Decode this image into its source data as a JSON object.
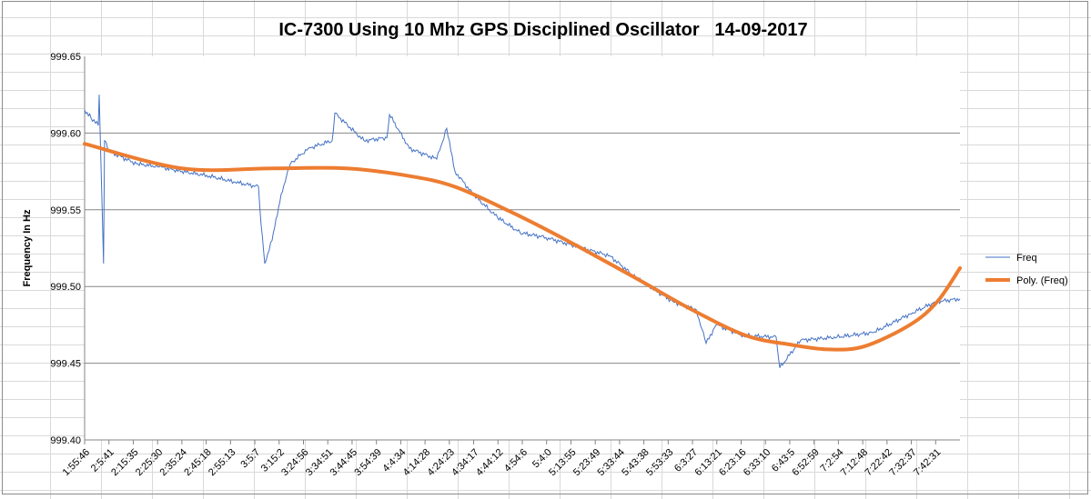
{
  "chart_data": {
    "type": "line",
    "title": "IC-7300 Using 10 Mhz GPS Disciplined Oscillator   14-09-2017",
    "xlabel": "",
    "ylabel": "Frequency In Hz",
    "ylim": [
      999.4,
      999.65
    ],
    "yticks": [
      "999.65",
      "999.60",
      "999.55",
      "999.50",
      "999.45",
      "999.40"
    ],
    "ytick_values": [
      999.65,
      999.6,
      999.55,
      999.5,
      999.45,
      999.4
    ],
    "grid": true,
    "legend_position": "right",
    "categories": [
      "1:55:46",
      "2:5:41",
      "2:15:35",
      "2:25:30",
      "2:35:24",
      "2:45:18",
      "2:55:13",
      "3:5:7",
      "3:15:2",
      "3:24:56",
      "3:34:51",
      "3:44:45",
      "3:54:39",
      "4:4:34",
      "4:14:28",
      "4:24:23",
      "4:34:17",
      "4:44:12",
      "4:54:6",
      "5:4:0",
      "5:13:55",
      "5:23:49",
      "5:33:44",
      "5:43:38",
      "5:53:33",
      "6:3:27",
      "6:13:21",
      "6:23:16",
      "6:33:10",
      "6:43:5",
      "6:52:59",
      "7:2:54",
      "7:12:48",
      "7:22:42",
      "7:32:37",
      "7:42:31"
    ],
    "x_units": "category index",
    "series": [
      {
        "name": "Freq",
        "color": "#4472c4",
        "x": [
          0,
          0.26,
          0.56,
          0.6,
          0.78,
          0.82,
          1.01,
          2.13,
          3.07,
          4.0,
          5.13,
          6.19,
          7.15,
          7.26,
          7.41,
          7.71,
          8.08,
          8.46,
          9.2,
          10.18,
          10.29,
          11.49,
          12.43,
          12.54,
          13.36,
          14.48,
          14.89,
          15.23,
          15.98,
          16.98,
          17.91,
          18.97,
          20.47,
          21.6,
          22.72,
          24.21,
          25.15,
          25.56,
          25.97,
          27.09,
          28.44,
          28.59,
          29.45,
          30.94,
          32.44,
          33.94,
          35.0,
          36.0
        ],
        "values": [
          999.615,
          999.61,
          999.605,
          999.625,
          999.515,
          999.595,
          999.588,
          999.58,
          999.578,
          999.575,
          999.572,
          999.568,
          999.565,
          999.54,
          999.515,
          999.53,
          999.56,
          999.58,
          999.59,
          999.595,
          999.613,
          999.595,
          999.597,
          999.612,
          999.59,
          999.583,
          999.603,
          999.575,
          999.56,
          999.545,
          999.535,
          999.532,
          999.525,
          999.52,
          999.505,
          999.49,
          999.485,
          999.463,
          999.475,
          999.468,
          999.467,
          999.447,
          999.465,
          999.467,
          999.47,
          999.482,
          999.49,
          999.492
        ]
      },
      {
        "name": "Poly. (Freq)",
        "color": "#ed7d31",
        "x": [
          0,
          4.0,
          7.74,
          10.74,
          13.36,
          15.23,
          17.48,
          19.72,
          22.72,
          24.96,
          27.21,
          29.08,
          30.58,
          32.07,
          33.94,
          35.06,
          36.0
        ],
        "values": [
          999.593,
          999.577,
          999.577,
          999.577,
          999.572,
          999.565,
          999.549,
          999.531,
          999.505,
          999.485,
          999.468,
          999.462,
          999.459,
          999.461,
          999.475,
          999.49,
          999.512
        ]
      }
    ]
  }
}
